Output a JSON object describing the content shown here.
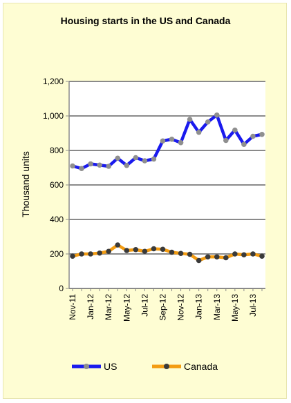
{
  "chart_data": {
    "type": "line",
    "title": "Housing starts in the US and Canada",
    "ylabel": "Thousand units",
    "xlabel": "",
    "ylim": [
      0,
      1200
    ],
    "yticks": [
      0,
      200,
      400,
      600,
      800,
      1000,
      1200
    ],
    "ytick_labels": [
      "0",
      "200",
      "400",
      "600",
      "800",
      "1,000",
      "1,200"
    ],
    "grid": true,
    "legend": "bottom",
    "x": [
      "Nov-11",
      "Dec-11",
      "Jan-12",
      "Feb-12",
      "Mar-12",
      "Apr-12",
      "May-12",
      "Jun-12",
      "Jul-12",
      "Aug-12",
      "Sep-12",
      "Oct-12",
      "Nov-12",
      "Dec-12",
      "Jan-13",
      "Feb-13",
      "Mar-13",
      "Apr-13",
      "May-13",
      "Jun-13",
      "Jul-13",
      "Aug-13"
    ],
    "x_tick_labels": [
      "Nov-11",
      "Jan-12",
      "Mar-12",
      "May-12",
      "Jul-12",
      "Sep-12",
      "Nov-12",
      "Jan-13",
      "Mar-13",
      "May-13",
      "Jul-13"
    ],
    "series": [
      {
        "name": "US",
        "color": "#1a1aee",
        "marker_color": "#8f8f8f",
        "values": [
          710,
          695,
          722,
          715,
          708,
          755,
          713,
          758,
          740,
          750,
          855,
          865,
          845,
          980,
          905,
          965,
          1005,
          858,
          918,
          835,
          882,
          893
        ]
      },
      {
        "name": "Canada",
        "color": "#f39c12",
        "marker_color": "#3a3a3a",
        "values": [
          187,
          200,
          200,
          205,
          215,
          252,
          220,
          225,
          215,
          230,
          227,
          210,
          203,
          198,
          162,
          183,
          183,
          178,
          200,
          195,
          200,
          187
        ]
      }
    ]
  }
}
